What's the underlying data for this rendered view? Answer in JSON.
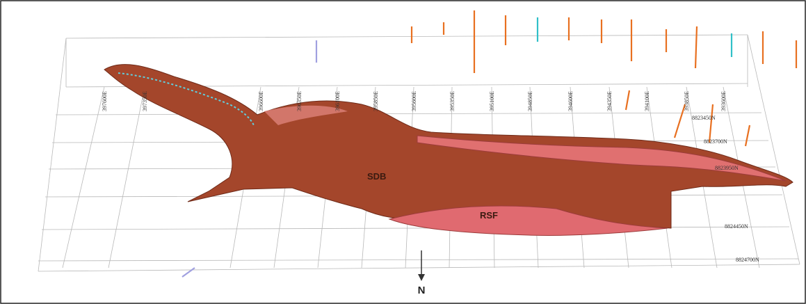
{
  "unit_labels": [
    "SDB",
    "RSF"
  ],
  "north_arrow": "N",
  "eastings": [
    "397600E",
    "397350E",
    "396600E",
    "396350E",
    "396100E",
    "395850E",
    "395600E",
    "395350E",
    "395100E",
    "394850E",
    "394600E",
    "394350E",
    "394100E",
    "393850E",
    "393600E"
  ],
  "northings": [
    "8823450N",
    "8823700N",
    "8823950N",
    "8824450N",
    "8824700N"
  ]
}
